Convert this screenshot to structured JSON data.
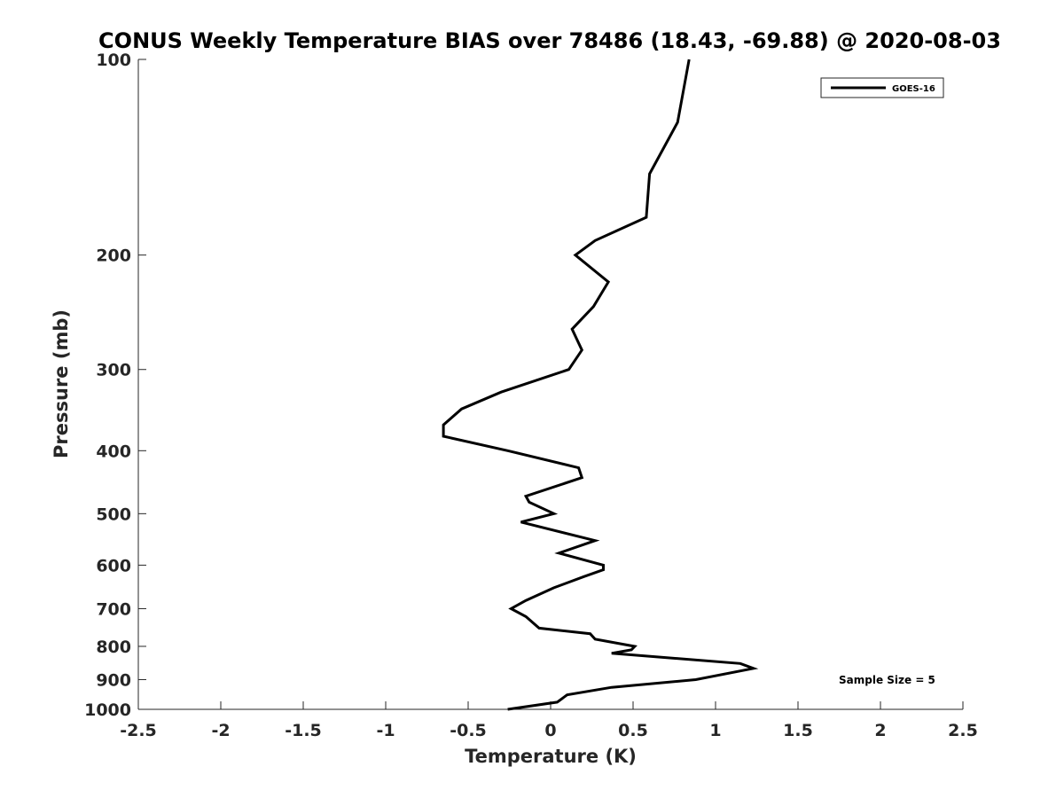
{
  "chart_data": {
    "type": "line",
    "title": "CONUS Weekly Temperature BIAS over 78486 (18.43, -69.88) @ 2020-08-03",
    "xlabel": "Temperature (K)",
    "ylabel": "Pressure (mb)",
    "xlim": [
      -2.5,
      2.5
    ],
    "ylim": [
      100,
      1000
    ],
    "yscale": "log",
    "yreversed": true,
    "x_ticks": [
      "-2.5",
      "-2",
      "-1.5",
      "-1",
      "-0.5",
      "0",
      "0.5",
      "1",
      "1.5",
      "2",
      "2.5"
    ],
    "y_ticks": [
      "100",
      "200",
      "300",
      "400",
      "500",
      "600",
      "700",
      "800",
      "900",
      "1000"
    ],
    "grid": false,
    "legend_position": "top-right",
    "annotation": "Sample Size = 5",
    "series": [
      {
        "name": "GOES-16",
        "color": "#000000",
        "points": [
          {
            "x": 0.84,
            "p": 100
          },
          {
            "x": 0.77,
            "p": 125
          },
          {
            "x": 0.6,
            "p": 150
          },
          {
            "x": 0.58,
            "p": 175
          },
          {
            "x": 0.27,
            "p": 190
          },
          {
            "x": 0.15,
            "p": 200
          },
          {
            "x": 0.35,
            "p": 220
          },
          {
            "x": 0.26,
            "p": 240
          },
          {
            "x": 0.13,
            "p": 260
          },
          {
            "x": 0.19,
            "p": 280
          },
          {
            "x": 0.11,
            "p": 300
          },
          {
            "x": -0.3,
            "p": 325
          },
          {
            "x": -0.54,
            "p": 345
          },
          {
            "x": -0.65,
            "p": 365
          },
          {
            "x": -0.65,
            "p": 380
          },
          {
            "x": -0.26,
            "p": 400
          },
          {
            "x": 0.17,
            "p": 425
          },
          {
            "x": 0.19,
            "p": 440
          },
          {
            "x": -0.15,
            "p": 470
          },
          {
            "x": -0.13,
            "p": 480
          },
          {
            "x": 0.02,
            "p": 500
          },
          {
            "x": -0.18,
            "p": 515
          },
          {
            "x": 0.27,
            "p": 550
          },
          {
            "x": 0.05,
            "p": 575
          },
          {
            "x": 0.32,
            "p": 600
          },
          {
            "x": 0.32,
            "p": 610
          },
          {
            "x": 0.2,
            "p": 625
          },
          {
            "x": 0.02,
            "p": 650
          },
          {
            "x": -0.15,
            "p": 680
          },
          {
            "x": -0.24,
            "p": 700
          },
          {
            "x": -0.15,
            "p": 720
          },
          {
            "x": -0.07,
            "p": 750
          },
          {
            "x": 0.24,
            "p": 765
          },
          {
            "x": 0.27,
            "p": 780
          },
          {
            "x": 0.51,
            "p": 800
          },
          {
            "x": 0.49,
            "p": 810
          },
          {
            "x": 0.37,
            "p": 820
          },
          {
            "x": 1.15,
            "p": 850
          },
          {
            "x": 1.23,
            "p": 865
          },
          {
            "x": 0.88,
            "p": 900
          },
          {
            "x": 0.37,
            "p": 925
          },
          {
            "x": 0.1,
            "p": 950
          },
          {
            "x": 0.04,
            "p": 975
          },
          {
            "x": -0.26,
            "p": 1000
          }
        ]
      }
    ]
  }
}
